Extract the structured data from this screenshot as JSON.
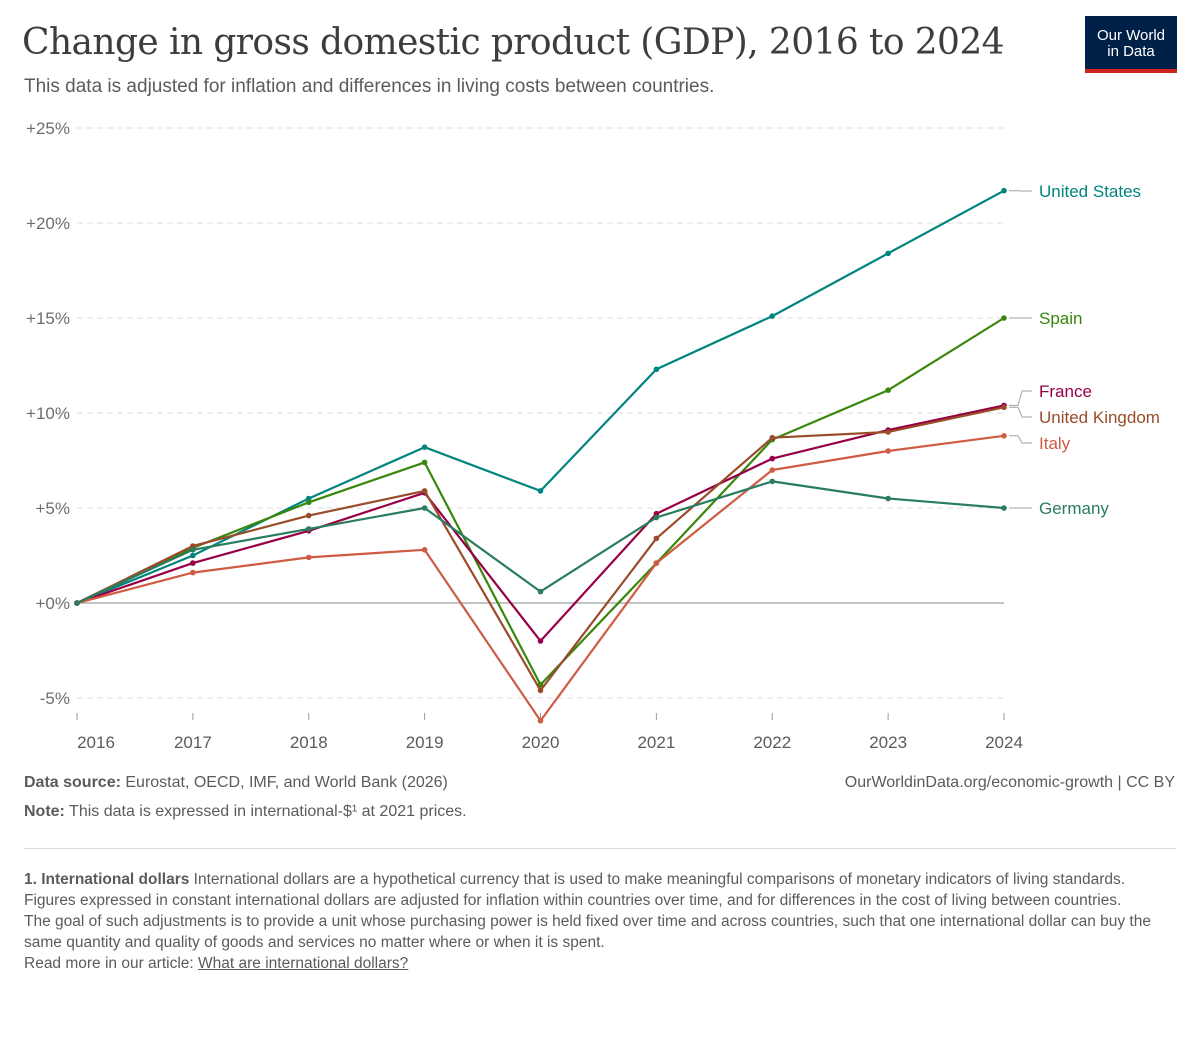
{
  "header": {
    "title": "Change in gross domestic product (GDP), 2016 to 2024",
    "subtitle": "This data is adjusted for inflation and differences in living costs between countries.",
    "logo_line1": "Our World",
    "logo_line2": "in Data"
  },
  "colors": {
    "United States": "#00847e",
    "Spain": "#38870b",
    "France": "#970046",
    "United Kingdom": "#9a4c2a",
    "Italy": "#d05b43",
    "Germany": "#2a7d5f",
    "grid": "#dddddd",
    "zero_line": "#a1a1a1",
    "logo_bg": "#002147",
    "logo_accent": "#ce261e"
  },
  "chart_data": {
    "type": "line",
    "title": "Change in gross domestic product (GDP), 2016 to 2024",
    "xlabel": "",
    "ylabel": "",
    "x": [
      2016,
      2017,
      2018,
      2019,
      2020,
      2021,
      2022,
      2023,
      2024
    ],
    "ylim": [
      -6,
      25
    ],
    "yticks": [
      -5,
      0,
      5,
      10,
      15,
      20,
      25
    ],
    "ytick_labels": [
      "-5%",
      "+0%",
      "+5%",
      "+10%",
      "+15%",
      "+20%",
      "+25%"
    ],
    "xtick_labels": [
      "2016",
      "2017",
      "2018",
      "2019",
      "2020",
      "2021",
      "2022",
      "2023",
      "2024"
    ],
    "grid": true,
    "legend": "right-end labels",
    "series": [
      {
        "name": "United States",
        "values": [
          0,
          2.5,
          5.5,
          8.2,
          5.9,
          12.3,
          15.1,
          18.4,
          21.7
        ]
      },
      {
        "name": "Spain",
        "values": [
          0,
          2.9,
          5.3,
          7.4,
          -4.3,
          2.1,
          8.6,
          11.2,
          15.0
        ]
      },
      {
        "name": "France",
        "values": [
          0,
          2.1,
          3.8,
          5.8,
          -2.0,
          4.7,
          7.6,
          9.1,
          10.4
        ]
      },
      {
        "name": "United Kingdom",
        "values": [
          0,
          3.0,
          4.6,
          5.9,
          -4.6,
          3.4,
          8.7,
          9.0,
          10.3
        ]
      },
      {
        "name": "Italy",
        "values": [
          0,
          1.6,
          2.4,
          2.8,
          -6.2,
          2.1,
          7.0,
          8.0,
          8.8
        ]
      },
      {
        "name": "Germany",
        "values": [
          0,
          2.8,
          3.9,
          5.0,
          0.6,
          4.5,
          6.4,
          5.5,
          5.0
        ]
      }
    ]
  },
  "footer": {
    "source_label": "Data source:",
    "source_text": " Eurostat, OECD, IMF, and World Bank (2026)",
    "url": "OurWorldinData.org/economic-growth",
    "license": " | CC BY",
    "note_label": "Note:",
    "note_text": " This data is expressed in international-$¹ at 2021 prices."
  },
  "footnote": {
    "heading": "1. International dollars",
    "line1": " International dollars are a hypothetical currency that is used to make meaningful comparisons of monetary indicators of living standards.",
    "line2": "Figures expressed in constant international dollars are adjusted for inflation within countries over time, and for differences in the cost of living between countries.",
    "line3": "The goal of such adjustments is to provide a unit whose purchasing power is held fixed over time and across countries, such that one international dollar can buy the same quantity and quality of goods and services no matter where or when it is spent.",
    "link_prefix": "Read more in our article: ",
    "link_text": "What are international dollars?"
  }
}
